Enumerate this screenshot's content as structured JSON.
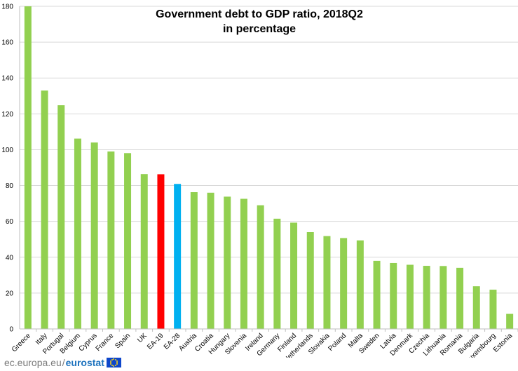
{
  "chart_data": {
    "type": "bar",
    "title": "Government debt to GDP ratio, 2018Q2",
    "subtitle": "in percentage",
    "xlabel": "",
    "ylabel": "",
    "ylim": [
      0,
      180
    ],
    "yticks": [
      0,
      20,
      40,
      60,
      80,
      100,
      120,
      140,
      160,
      180
    ],
    "grid": true,
    "categories": [
      "Greece",
      "Italy",
      "Portugal",
      "Belgium",
      "Cyprus",
      "France",
      "Spain",
      "UK",
      "EA-19",
      "EA-28",
      "Austria",
      "Croatia",
      "Hungary",
      "Slovenia",
      "Ireland",
      "Germany",
      "Finland",
      "Netherlands",
      "Slovakia",
      "Poland",
      "Malta",
      "Sweden",
      "Latvia",
      "Denmark",
      "Czechia",
      "Lithuania",
      "Romania",
      "Bulgaria",
      "Luxembourg",
      "Estonia"
    ],
    "values": [
      180.0,
      133.0,
      124.8,
      106.2,
      104.0,
      99.0,
      98.1,
      86.4,
      86.3,
      80.9,
      76.3,
      76.0,
      73.8,
      72.6,
      69.0,
      61.5,
      59.3,
      54.0,
      51.8,
      50.7,
      49.4,
      38.0,
      36.8,
      35.8,
      35.2,
      35.1,
      34.1,
      23.8,
      21.9,
      8.4
    ],
    "colors": {
      "default": "#92d050",
      "EA-19": "#ff0000",
      "EA-28": "#00b0f0"
    }
  },
  "footer": {
    "site": "ec.europa.eu",
    "separator": "/",
    "brand": "eurostat"
  }
}
